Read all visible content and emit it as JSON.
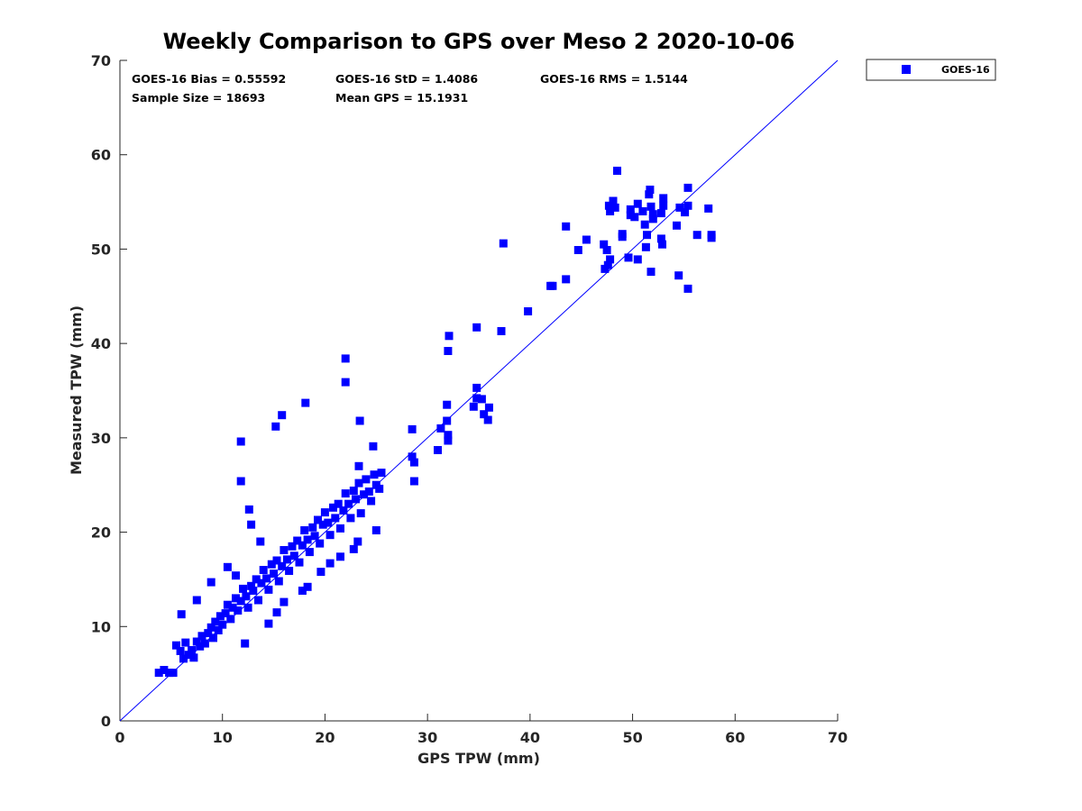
{
  "chart_data": {
    "type": "scatter",
    "title": "Weekly Comparison to GPS over Meso 2 2020-10-06",
    "xlabel": "GPS TPW (mm)",
    "ylabel": "Measured TPW (mm)",
    "xlim": [
      0,
      70
    ],
    "ylim": [
      0,
      70
    ],
    "xticks": [
      "0",
      "10",
      "20",
      "30",
      "40",
      "50",
      "60",
      "70"
    ],
    "yticks": [
      "0",
      "10",
      "20",
      "30",
      "40",
      "50",
      "60",
      "70"
    ],
    "grid": false,
    "legend": {
      "position": "outside-top-right",
      "entries": [
        "GOES-16"
      ]
    },
    "reference_line": {
      "name": "1:1 line",
      "from": [
        0,
        0
      ],
      "to": [
        70,
        70
      ],
      "color": "#0000ff"
    },
    "annotations": {
      "bias": "GOES-16 Bias = 0.55592",
      "std": "GOES-16 StD = 1.4086",
      "rms": "GOES-16 RMS = 1.5144",
      "sample_size": "Sample Size = 18693",
      "mean_gps": "Mean GPS = 15.1931"
    },
    "series": [
      {
        "name": "GOES-16",
        "color": "#0000ff",
        "marker": "square",
        "points": [
          [
            3.8,
            5.1
          ],
          [
            4.3,
            5.4
          ],
          [
            4.8,
            5.1
          ],
          [
            5.2,
            5.1
          ],
          [
            5.5,
            8.0
          ],
          [
            5.9,
            7.4
          ],
          [
            6.2,
            6.6
          ],
          [
            6.4,
            8.3
          ],
          [
            6.7,
            7.0
          ],
          [
            7.0,
            7.5
          ],
          [
            7.2,
            6.7
          ],
          [
            7.5,
            8.4
          ],
          [
            7.8,
            7.9
          ],
          [
            8.0,
            9.0
          ],
          [
            8.3,
            8.2
          ],
          [
            8.6,
            9.3
          ],
          [
            8.9,
            9.9
          ],
          [
            9.1,
            8.8
          ],
          [
            9.3,
            10.5
          ],
          [
            9.6,
            9.6
          ],
          [
            9.8,
            11.1
          ],
          [
            10.0,
            10.2
          ],
          [
            10.3,
            11.4
          ],
          [
            10.5,
            12.3
          ],
          [
            10.8,
            10.8
          ],
          [
            11.0,
            12.0
          ],
          [
            11.3,
            13.0
          ],
          [
            11.5,
            11.7
          ],
          [
            11.8,
            12.7
          ],
          [
            12.0,
            14.0
          ],
          [
            12.3,
            13.2
          ],
          [
            12.5,
            12.0
          ],
          [
            12.8,
            14.3
          ],
          [
            13.0,
            13.8
          ],
          [
            13.3,
            15.0
          ],
          [
            13.5,
            12.8
          ],
          [
            13.8,
            14.6
          ],
          [
            14.0,
            16.0
          ],
          [
            14.3,
            15.1
          ],
          [
            14.5,
            13.9
          ],
          [
            14.8,
            16.6
          ],
          [
            15.0,
            15.6
          ],
          [
            15.3,
            17.0
          ],
          [
            15.5,
            14.8
          ],
          [
            15.8,
            16.4
          ],
          [
            16.0,
            18.1
          ],
          [
            16.3,
            17.1
          ],
          [
            16.5,
            15.9
          ],
          [
            16.8,
            18.5
          ],
          [
            17.0,
            17.5
          ],
          [
            17.3,
            19.1
          ],
          [
            17.5,
            16.8
          ],
          [
            17.8,
            18.6
          ],
          [
            18.0,
            20.2
          ],
          [
            18.3,
            19.2
          ],
          [
            18.5,
            17.9
          ],
          [
            18.8,
            20.5
          ],
          [
            19.0,
            19.6
          ],
          [
            19.3,
            21.3
          ],
          [
            19.5,
            18.8
          ],
          [
            19.8,
            20.8
          ],
          [
            20.0,
            22.1
          ],
          [
            20.3,
            21.0
          ],
          [
            20.5,
            19.7
          ],
          [
            20.8,
            22.6
          ],
          [
            21.0,
            21.5
          ],
          [
            21.3,
            23.0
          ],
          [
            21.5,
            20.4
          ],
          [
            21.8,
            22.3
          ],
          [
            22.0,
            24.1
          ],
          [
            22.3,
            23.0
          ],
          [
            22.5,
            21.5
          ],
          [
            22.8,
            24.4
          ],
          [
            23.0,
            23.5
          ],
          [
            23.3,
            25.2
          ],
          [
            23.5,
            22.0
          ],
          [
            23.8,
            24.0
          ],
          [
            24.0,
            25.6
          ],
          [
            24.3,
            24.3
          ],
          [
            24.5,
            23.3
          ],
          [
            24.8,
            26.1
          ],
          [
            25.0,
            25.0
          ],
          [
            25.3,
            24.6
          ],
          [
            25.5,
            26.3
          ],
          [
            6.0,
            11.3
          ],
          [
            7.5,
            12.8
          ],
          [
            8.9,
            14.7
          ],
          [
            10.5,
            16.3
          ],
          [
            11.3,
            15.4
          ],
          [
            12.8,
            20.8
          ],
          [
            12.6,
            22.4
          ],
          [
            13.7,
            19.0
          ],
          [
            11.8,
            25.4
          ],
          [
            11.8,
            29.6
          ],
          [
            15.2,
            31.2
          ],
          [
            15.8,
            32.4
          ],
          [
            18.1,
            33.7
          ],
          [
            22.0,
            35.9
          ],
          [
            22.0,
            38.4
          ],
          [
            23.4,
            31.8
          ],
          [
            24.7,
            29.1
          ],
          [
            23.3,
            27.0
          ],
          [
            12.2,
            8.2
          ],
          [
            14.5,
            10.3
          ],
          [
            16.0,
            12.6
          ],
          [
            17.8,
            13.8
          ],
          [
            19.6,
            15.8
          ],
          [
            21.5,
            17.4
          ],
          [
            23.2,
            19.0
          ],
          [
            25.0,
            20.2
          ],
          [
            20.5,
            16.7
          ],
          [
            22.8,
            18.2
          ],
          [
            18.3,
            14.2
          ],
          [
            15.3,
            11.5
          ],
          [
            28.5,
            30.9
          ],
          [
            28.5,
            28.0
          ],
          [
            28.7,
            27.4
          ],
          [
            28.7,
            25.4
          ],
          [
            31.0,
            28.7
          ],
          [
            31.3,
            31.0
          ],
          [
            32.0,
            29.7
          ],
          [
            32.0,
            30.3
          ],
          [
            31.9,
            31.8
          ],
          [
            31.9,
            33.5
          ],
          [
            32.0,
            39.2
          ],
          [
            32.1,
            40.8
          ],
          [
            34.5,
            33.3
          ],
          [
            34.8,
            35.3
          ],
          [
            34.8,
            34.2
          ],
          [
            35.3,
            34.1
          ],
          [
            35.5,
            32.5
          ],
          [
            35.9,
            31.9
          ],
          [
            36.0,
            33.2
          ],
          [
            34.8,
            41.7
          ],
          [
            37.2,
            41.3
          ],
          [
            37.4,
            50.6
          ],
          [
            39.8,
            43.4
          ],
          [
            42.0,
            46.1
          ],
          [
            42.2,
            46.1
          ],
          [
            43.5,
            46.8
          ],
          [
            43.5,
            52.4
          ],
          [
            44.7,
            49.9
          ],
          [
            45.5,
            51.0
          ],
          [
            47.2,
            50.5
          ],
          [
            47.3,
            47.9
          ],
          [
            47.5,
            49.9
          ],
          [
            47.6,
            48.3
          ],
          [
            47.8,
            48.9
          ],
          [
            47.7,
            54.6
          ],
          [
            47.8,
            54.0
          ],
          [
            48.1,
            55.1
          ],
          [
            48.3,
            54.4
          ],
          [
            48.5,
            58.3
          ],
          [
            49.0,
            51.6
          ],
          [
            49.0,
            51.3
          ],
          [
            49.6,
            49.1
          ],
          [
            49.8,
            54.2
          ],
          [
            49.8,
            53.6
          ],
          [
            50.2,
            53.4
          ],
          [
            50.5,
            48.9
          ],
          [
            50.5,
            54.8
          ],
          [
            51.0,
            54.0
          ],
          [
            51.2,
            52.6
          ],
          [
            51.3,
            50.2
          ],
          [
            51.4,
            51.5
          ],
          [
            51.6,
            55.8
          ],
          [
            51.7,
            56.3
          ],
          [
            51.8,
            54.5
          ],
          [
            51.8,
            47.6
          ],
          [
            52.0,
            53.2
          ],
          [
            52.0,
            53.7
          ],
          [
            52.8,
            53.8
          ],
          [
            52.8,
            51.1
          ],
          [
            52.9,
            50.5
          ],
          [
            53.0,
            55.4
          ],
          [
            53.0,
            54.6
          ],
          [
            54.3,
            52.5
          ],
          [
            54.5,
            47.2
          ],
          [
            54.6,
            54.4
          ],
          [
            55.1,
            53.9
          ],
          [
            55.4,
            54.6
          ],
          [
            55.4,
            56.5
          ],
          [
            55.4,
            45.8
          ],
          [
            56.3,
            51.5
          ],
          [
            57.4,
            54.3
          ],
          [
            57.7,
            51.2
          ],
          [
            57.7,
            51.5
          ]
        ]
      }
    ]
  }
}
